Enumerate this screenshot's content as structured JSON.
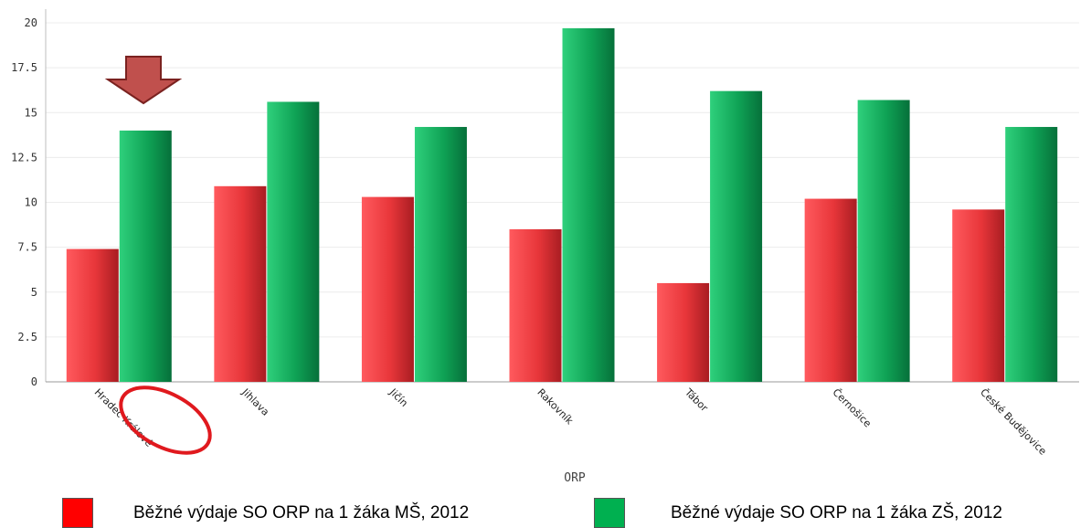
{
  "chart_data": {
    "type": "bar",
    "title": "",
    "xlabel": "ORP",
    "ylabel": "",
    "ylim": [
      0,
      20
    ],
    "yticks": [
      "0",
      "2.5",
      "5",
      "7.5",
      "10",
      "12.5",
      "15",
      "17.5",
      "20"
    ],
    "grid": true,
    "categories": [
      "Hradec Králové",
      "Jihlava",
      "Jičín",
      "Rakovník",
      "Tábor",
      "Černošice",
      "České Budějovice"
    ],
    "series": [
      {
        "name": "Běžné výdaje SO ORP na 1 žáka MŠ, 2012",
        "color": "#e8363a",
        "values": [
          7.4,
          10.9,
          10.3,
          8.5,
          5.5,
          10.2,
          9.6
        ]
      },
      {
        "name": "Běžné výdaje SO ORP na 1 žáka ZŠ, 2012",
        "color": "#0fa255",
        "values": [
          14.0,
          15.6,
          14.2,
          19.7,
          16.2,
          15.7,
          14.2
        ]
      }
    ],
    "annotations": {
      "arrow_category": "Hradec Králové",
      "circled_category": "Hradec Králové",
      "arrow_color": "#c0504d",
      "circle_color": "#e0191e"
    },
    "legend": {
      "placement": "bottom",
      "items": [
        {
          "label": "Běžné výdaje SO ORP na 1 žáka MŠ, 2012",
          "color": "#ff0000"
        },
        {
          "label": "Běžné výdaje SO ORP na 1 žáka ZŠ, 2012",
          "color": "#00b050"
        }
      ]
    }
  }
}
